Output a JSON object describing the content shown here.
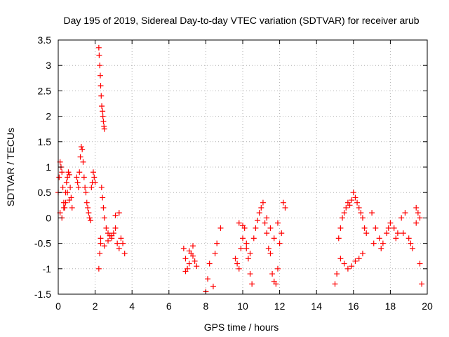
{
  "chart_data": {
    "type": "scatter",
    "title": "Day 195 of 2019, Sidereal Day-to-day VTEC variation (SDTVAR) for receiver arub",
    "xlabel": "GPS time / hours",
    "ylabel": "SDTVAR / TECUs",
    "xlim": [
      0,
      20
    ],
    "ylim": [
      -1.5,
      3.5
    ],
    "xticks": [
      0,
      2,
      4,
      6,
      8,
      10,
      12,
      14,
      16,
      18,
      20
    ],
    "yticks": [
      -1.5,
      -1,
      -0.5,
      0,
      0.5,
      1,
      1.5,
      2,
      2.5,
      3,
      3.5
    ],
    "grid": true,
    "marker": "+",
    "series": [
      {
        "name": "SDTVAR",
        "color": "#ff0000",
        "x": [
          0.0,
          0.05,
          0.1,
          0.15,
          0.2,
          0.25,
          0.3,
          0.35,
          0.4,
          0.45,
          0.5,
          0.55,
          0.6,
          0.65,
          0.7,
          0.75,
          0.1,
          0.2,
          0.3,
          0.4,
          0.5,
          0.6,
          1.0,
          1.05,
          1.1,
          1.15,
          1.2,
          1.25,
          1.3,
          1.35,
          1.4,
          1.45,
          1.5,
          1.55,
          1.6,
          1.65,
          1.7,
          1.75,
          1.8,
          1.85,
          1.9,
          1.95,
          2.0,
          2.2,
          2.22,
          2.25,
          2.28,
          2.3,
          2.33,
          2.36,
          2.4,
          2.42,
          2.45,
          2.48,
          2.5,
          2.2,
          2.25,
          2.3,
          2.35,
          2.4,
          2.45,
          2.5,
          2.6,
          2.7,
          2.8,
          2.9,
          3.0,
          3.1,
          3.2,
          3.3,
          3.4,
          3.5,
          3.6,
          2.3,
          2.5,
          2.7,
          2.9,
          3.1,
          3.3,
          6.8,
          6.9,
          7.0,
          7.1,
          7.2,
          7.3,
          7.4,
          7.5,
          6.9,
          7.1,
          7.3,
          8.0,
          8.1,
          8.2,
          8.4,
          8.5,
          8.6,
          8.8,
          9.6,
          9.7,
          9.8,
          9.9,
          10.0,
          10.1,
          10.2,
          10.3,
          10.4,
          10.5,
          10.6,
          10.7,
          10.8,
          10.9,
          11.0,
          11.1,
          11.2,
          11.3,
          11.4,
          11.5,
          11.6,
          11.7,
          11.8,
          11.9,
          12.0,
          12.1,
          12.2,
          12.3,
          9.8,
          10.0,
          10.2,
          10.4,
          11.3,
          11.5,
          11.7,
          11.9,
          15.0,
          15.1,
          15.2,
          15.3,
          15.4,
          15.5,
          15.6,
          15.7,
          15.8,
          15.9,
          16.0,
          16.1,
          16.2,
          16.3,
          16.4,
          16.5,
          16.6,
          16.7,
          15.3,
          15.5,
          15.7,
          15.9,
          16.1,
          16.3,
          16.5,
          17.0,
          17.2,
          17.4,
          17.6,
          17.8,
          18.0,
          18.2,
          18.4,
          18.6,
          18.8,
          19.0,
          19.2,
          19.4,
          19.5,
          19.6,
          19.7,
          17.1,
          17.5,
          17.9,
          18.3,
          18.7,
          19.1,
          19.4,
          19.6
        ],
        "y": [
          0.5,
          0.8,
          1.1,
          1.0,
          0.9,
          0.6,
          0.3,
          0.2,
          0.5,
          0.7,
          0.8,
          0.9,
          0.85,
          0.6,
          0.4,
          0.2,
          0.1,
          0.0,
          0.2,
          0.3,
          0.5,
          0.35,
          0.8,
          0.7,
          0.6,
          0.9,
          1.2,
          1.4,
          1.35,
          1.1,
          0.8,
          0.6,
          0.5,
          0.3,
          0.2,
          0.1,
          0.0,
          -0.05,
          0.6,
          0.7,
          0.9,
          0.8,
          0.7,
          3.35,
          3.2,
          3.0,
          2.8,
          2.6,
          2.4,
          2.2,
          2.1,
          2.0,
          1.9,
          1.8,
          1.75,
          -1.0,
          -0.7,
          -0.4,
          0.6,
          0.4,
          0.2,
          0.0,
          -0.2,
          -0.3,
          -0.35,
          -0.4,
          -0.3,
          -0.2,
          -0.5,
          -0.6,
          -0.4,
          -0.5,
          -0.7,
          -0.5,
          -0.55,
          -0.45,
          -0.35,
          0.05,
          0.1,
          -0.6,
          -0.8,
          -1.0,
          -0.9,
          -0.7,
          -0.75,
          -0.85,
          -0.95,
          -1.05,
          -0.65,
          -0.55,
          -1.45,
          -1.2,
          -0.9,
          -1.35,
          -0.7,
          -0.5,
          -0.2,
          -0.8,
          -0.9,
          -1.0,
          -0.6,
          -0.4,
          -0.2,
          -0.5,
          -0.8,
          -1.1,
          -1.3,
          -0.4,
          -0.2,
          -0.05,
          0.1,
          0.2,
          0.3,
          -0.1,
          -0.3,
          -0.6,
          -0.7,
          -1.1,
          -1.25,
          -1.3,
          -1.0,
          -0.5,
          -0.3,
          0.3,
          0.2,
          -0.1,
          -0.15,
          -0.6,
          -0.7,
          0.0,
          -0.2,
          -0.4,
          -0.1,
          -1.3,
          -1.1,
          -0.4,
          -0.2,
          0.0,
          0.1,
          0.2,
          0.3,
          0.25,
          0.35,
          0.5,
          0.4,
          0.3,
          0.2,
          0.1,
          0.0,
          -0.2,
          -0.3,
          -0.8,
          -0.9,
          -1.0,
          -0.95,
          -0.85,
          -0.8,
          -0.7,
          0.1,
          -0.2,
          -0.4,
          -0.5,
          -0.3,
          -0.1,
          -0.2,
          -0.3,
          0.0,
          0.1,
          -0.4,
          -0.6,
          0.2,
          0.1,
          -0.9,
          -1.3,
          -0.5,
          -0.6,
          -0.2,
          -0.4,
          -0.3,
          -0.5,
          -0.1,
          0.0
        ]
      }
    ]
  }
}
